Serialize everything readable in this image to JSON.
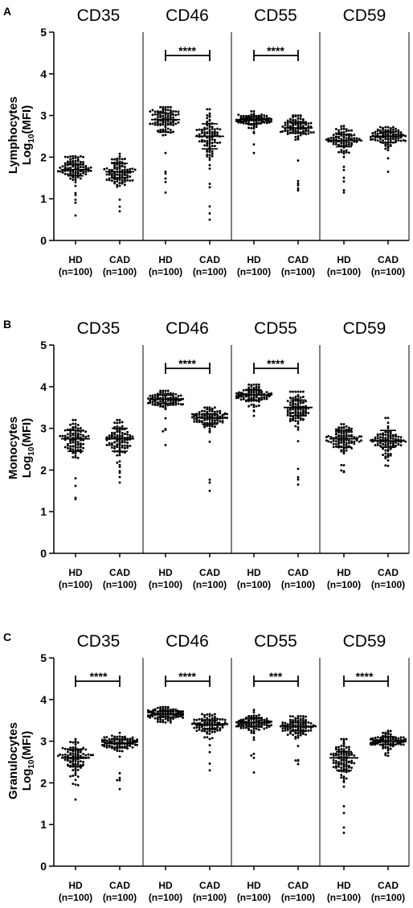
{
  "chart_data": [
    {
      "type": "scatter",
      "panel_label": "A",
      "ylabel_line1": "Lymphocytes",
      "ylabel_line2_prefix": "Log",
      "ylabel_line2_sub": "10",
      "ylabel_line2_suffix": "(MFI)",
      "ylim": [
        0,
        5
      ],
      "yticks": [
        "0",
        "1",
        "2",
        "3",
        "4",
        "5"
      ],
      "markers": [
        {
          "title": "CD35",
          "significance": "",
          "groups": [
            {
              "label": "HD",
              "n_label": "(n=100)",
              "median": 1.7,
              "q1": 1.55,
              "q3": 1.82,
              "min": 0.6,
              "max": 2.02,
              "spread": 0.16
            },
            {
              "label": "CAD",
              "n_label": "(n=100)",
              "median": 1.65,
              "q1": 1.5,
              "q3": 1.85,
              "min": 0.7,
              "max": 2.08,
              "spread": 0.17
            }
          ]
        },
        {
          "title": "CD46",
          "significance": "****",
          "groups": [
            {
              "label": "HD",
              "n_label": "(n=100)",
              "median": 2.9,
              "q1": 2.6,
              "q3": 3.05,
              "min": 1.15,
              "max": 3.2,
              "spread": 0.16
            },
            {
              "label": "CAD",
              "n_label": "(n=100)",
              "median": 2.5,
              "q1": 2.2,
              "q3": 2.8,
              "min": 0.5,
              "max": 3.15,
              "spread": 0.25
            }
          ]
        },
        {
          "title": "CD55",
          "significance": "****",
          "groups": [
            {
              "label": "HD",
              "n_label": "(n=100)",
              "median": 2.9,
              "q1": 2.8,
              "q3": 2.98,
              "min": 2.1,
              "max": 3.1,
              "spread": 0.09
            },
            {
              "label": "CAD",
              "n_label": "(n=100)",
              "median": 2.7,
              "q1": 2.58,
              "q3": 2.82,
              "min": 1.2,
              "max": 3.0,
              "spread": 0.14
            }
          ]
        },
        {
          "title": "CD59",
          "significance": "",
          "groups": [
            {
              "label": "HD",
              "n_label": "(n=100)",
              "median": 2.4,
              "q1": 2.25,
              "q3": 2.55,
              "min": 1.15,
              "max": 2.75,
              "spread": 0.16
            },
            {
              "label": "CAD",
              "n_label": "(n=100)",
              "median": 2.5,
              "q1": 2.35,
              "q3": 2.6,
              "min": 1.65,
              "max": 2.72,
              "spread": 0.12
            }
          ]
        }
      ]
    },
    {
      "type": "scatter",
      "panel_label": "B",
      "ylabel_line1": "Monocytes",
      "ylabel_line2_prefix": "Log",
      "ylabel_line2_sub": "10",
      "ylabel_line2_suffix": "(MFI)",
      "ylim": [
        0,
        5
      ],
      "yticks": [
        "0",
        "1",
        "2",
        "3",
        "4",
        "5"
      ],
      "markers": [
        {
          "title": "CD35",
          "significance": "",
          "groups": [
            {
              "label": "HD",
              "n_label": "(n=100)",
              "median": 2.75,
              "q1": 2.45,
              "q3": 2.95,
              "min": 1.3,
              "max": 3.2,
              "spread": 0.22
            },
            {
              "label": "CAD",
              "n_label": "(n=100)",
              "median": 2.75,
              "q1": 2.45,
              "q3": 3.0,
              "min": 1.7,
              "max": 3.2,
              "spread": 0.22
            }
          ]
        },
        {
          "title": "CD46",
          "significance": "****",
          "groups": [
            {
              "label": "HD",
              "n_label": "(n=100)",
              "median": 3.7,
              "q1": 3.6,
              "q3": 3.8,
              "min": 2.6,
              "max": 3.9,
              "spread": 0.1
            },
            {
              "label": "CAD",
              "n_label": "(n=100)",
              "median": 3.25,
              "q1": 3.1,
              "q3": 3.35,
              "min": 1.5,
              "max": 3.5,
              "spread": 0.13
            }
          ]
        },
        {
          "title": "CD55",
          "significance": "****",
          "groups": [
            {
              "label": "HD",
              "n_label": "(n=100)",
              "median": 3.8,
              "q1": 3.68,
              "q3": 3.92,
              "min": 3.3,
              "max": 4.05,
              "spread": 0.12
            },
            {
              "label": "CAD",
              "n_label": "(n=100)",
              "median": 3.5,
              "q1": 3.3,
              "q3": 3.68,
              "min": 1.65,
              "max": 3.88,
              "spread": 0.2
            }
          ]
        },
        {
          "title": "CD59",
          "significance": "",
          "groups": [
            {
              "label": "HD",
              "n_label": "(n=100)",
              "median": 2.75,
              "q1": 2.55,
              "q3": 2.95,
              "min": 1.95,
              "max": 3.1,
              "spread": 0.18
            },
            {
              "label": "CAD",
              "n_label": "(n=100)",
              "median": 2.7,
              "q1": 2.55,
              "q3": 2.95,
              "min": 2.1,
              "max": 3.25,
              "spread": 0.17
            }
          ]
        }
      ]
    },
    {
      "type": "scatter",
      "panel_label": "C",
      "ylabel_line1": "Granulocytes",
      "ylabel_line2_prefix": "Log",
      "ylabel_line2_sub": "10",
      "ylabel_line2_suffix": "(MFI)",
      "ylim": [
        0,
        5
      ],
      "yticks": [
        "0",
        "1",
        "2",
        "3",
        "4",
        "5"
      ],
      "markers": [
        {
          "title": "CD35",
          "significance": "****",
          "groups": [
            {
              "label": "HD",
              "n_label": "(n=100)",
              "median": 2.6,
              "q1": 2.4,
              "q3": 2.8,
              "min": 1.6,
              "max": 3.05,
              "spread": 0.2
            },
            {
              "label": "CAD",
              "n_label": "(n=100)",
              "median": 2.95,
              "q1": 2.85,
              "q3": 3.05,
              "min": 1.85,
              "max": 3.2,
              "spread": 0.1
            }
          ]
        },
        {
          "title": "CD46",
          "significance": "****",
          "groups": [
            {
              "label": "HD",
              "n_label": "(n=100)",
              "median": 3.65,
              "q1": 3.58,
              "q3": 3.72,
              "min": 3.45,
              "max": 3.82,
              "spread": 0.07
            },
            {
              "label": "CAD",
              "n_label": "(n=100)",
              "median": 3.4,
              "q1": 3.3,
              "q3": 3.5,
              "min": 2.3,
              "max": 3.65,
              "spread": 0.12
            }
          ]
        },
        {
          "title": "CD55",
          "significance": "***",
          "groups": [
            {
              "label": "HD",
              "n_label": "(n=100)",
              "median": 3.45,
              "q1": 3.35,
              "q3": 3.55,
              "min": 2.25,
              "max": 3.75,
              "spread": 0.12
            },
            {
              "label": "CAD",
              "n_label": "(n=100)",
              "median": 3.35,
              "q1": 3.25,
              "q3": 3.45,
              "min": 2.45,
              "max": 3.6,
              "spread": 0.12
            }
          ]
        },
        {
          "title": "CD59",
          "significance": "****",
          "groups": [
            {
              "label": "HD",
              "n_label": "(n=100)",
              "median": 2.6,
              "q1": 2.3,
              "q3": 2.75,
              "min": 0.8,
              "max": 3.05,
              "spread": 0.25
            },
            {
              "label": "CAD",
              "n_label": "(n=100)",
              "median": 3.0,
              "q1": 2.92,
              "q3": 3.1,
              "min": 2.65,
              "max": 3.25,
              "spread": 0.09
            }
          ]
        }
      ]
    }
  ]
}
